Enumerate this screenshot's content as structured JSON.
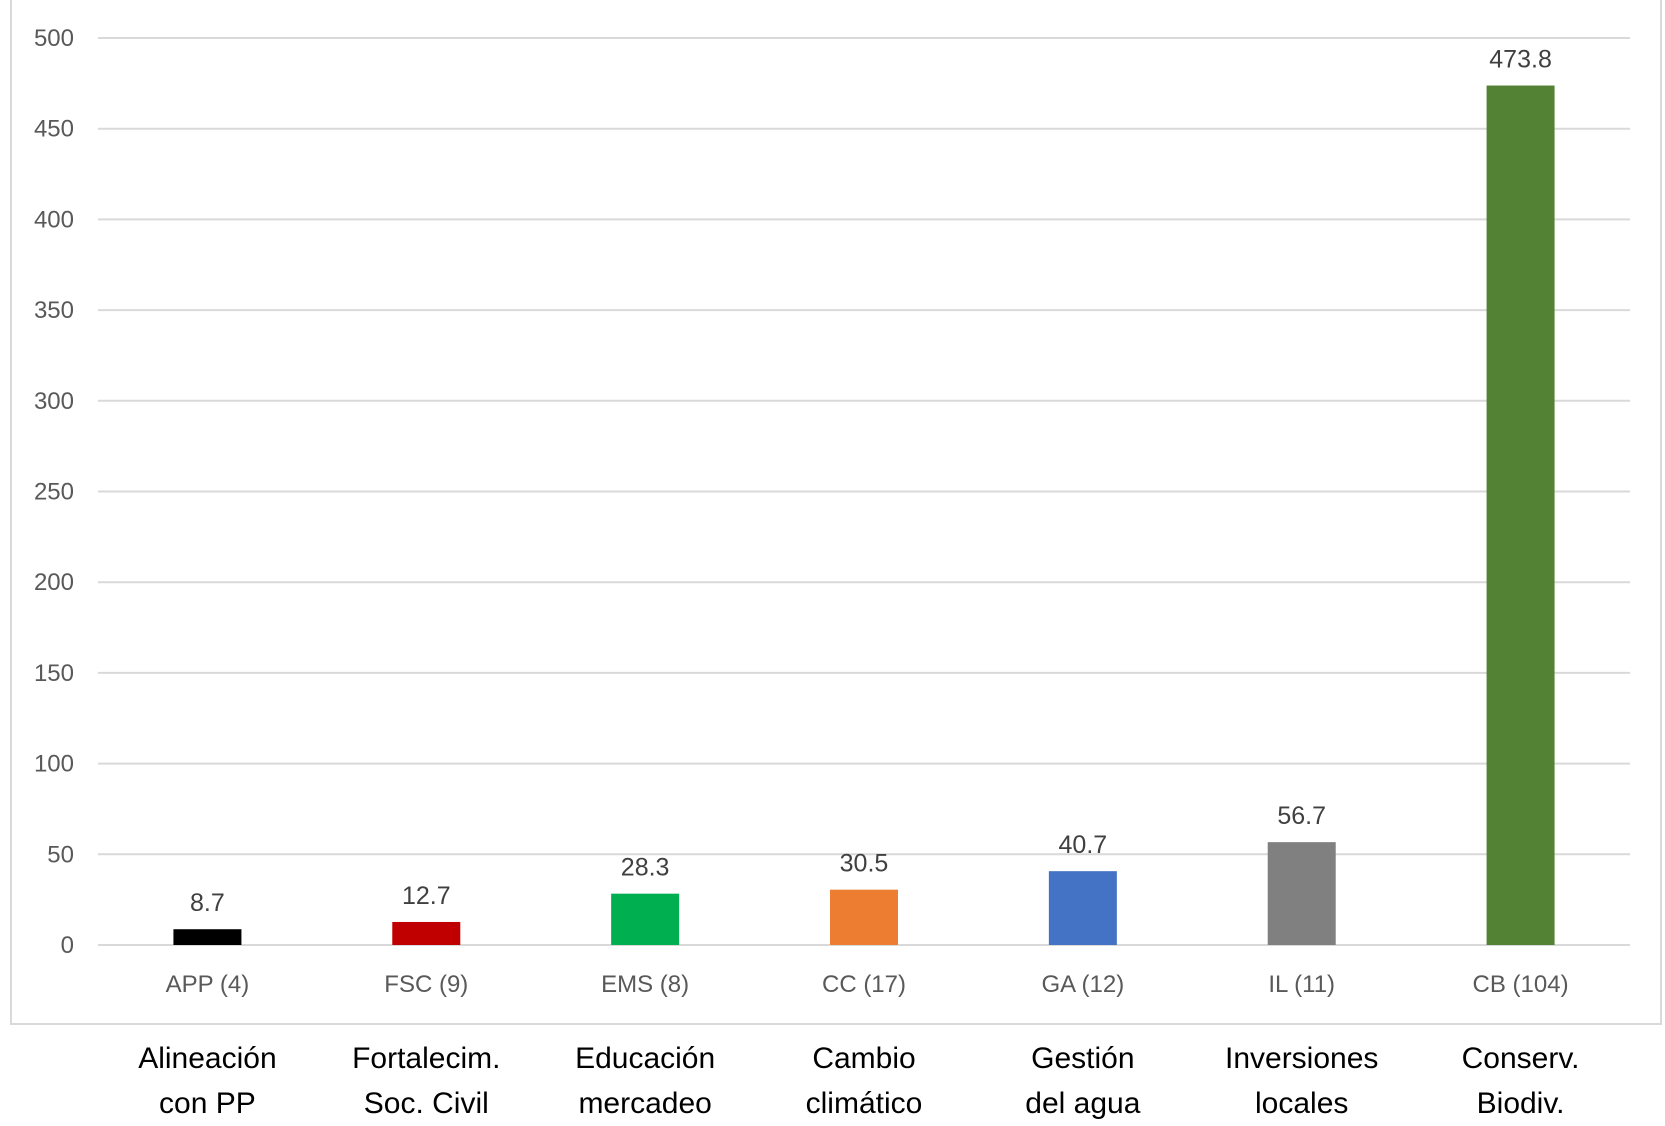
{
  "chart_data": {
    "type": "bar",
    "categories": [
      "APP (4)",
      "FSC (9)",
      "EMS (8)",
      "CC (17)",
      "GA (12)",
      "IL (11)",
      "CB (104)"
    ],
    "values": [
      8.7,
      12.7,
      28.3,
      30.5,
      40.7,
      56.7,
      473.8
    ],
    "data_labels": [
      "8.7",
      "12.7",
      "28.3",
      "30.5",
      "40.7",
      "56.7",
      "473.8"
    ],
    "colors": [
      "#000000",
      "#c00000",
      "#00b050",
      "#ed7d31",
      "#4472c4",
      "#808080",
      "#548235"
    ],
    "ylim": [
      0,
      500
    ],
    "yticks": [
      0,
      50,
      100,
      150,
      200,
      250,
      300,
      350,
      400,
      450,
      500
    ],
    "ytick_labels": [
      "0",
      "50",
      "100",
      "150",
      "200",
      "250",
      "300",
      "350",
      "400",
      "450",
      "500"
    ],
    "grid": true,
    "legend": "none"
  },
  "descriptions": [
    {
      "line1": "Alineación",
      "line2": "con PP"
    },
    {
      "line1": "Fortalecim.",
      "line2": "Soc. Civil"
    },
    {
      "line1": "Educación",
      "line2": "mercadeo"
    },
    {
      "line1": "Cambio",
      "line2": "climático"
    },
    {
      "line1": "Gestión",
      "line2": "del agua"
    },
    {
      "line1": "Inversiones",
      "line2": "locales"
    },
    {
      "line1": "Conserv.",
      "line2": "Biodiv."
    }
  ]
}
